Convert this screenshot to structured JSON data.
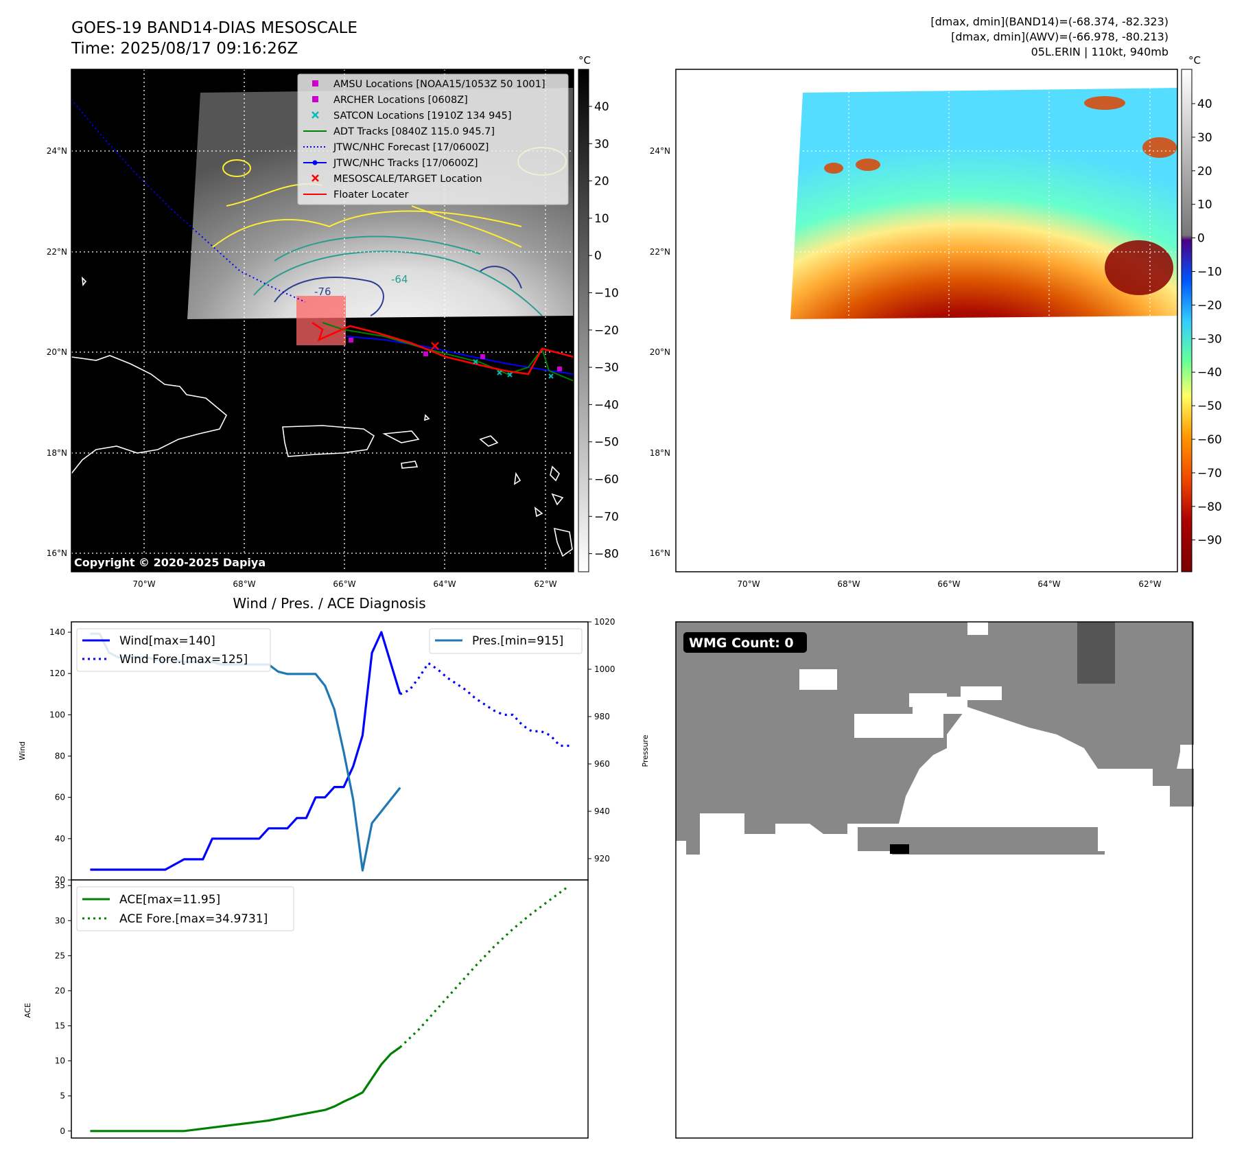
{
  "header": {
    "title": "GOES-19 BAND14-DIAS MESOSCALE",
    "time": "Time: 2025/08/17 09:16:26Z",
    "band14_range": "[dmax, dmin](BAND14)=(-68.374, -82.323)",
    "awv_range": "[dmax, dmin](AWV)=(-66.978, -80.213)",
    "storm": "05L.ERIN | 110kt, 940mb"
  },
  "maps": {
    "copyright": "Copyright © 2020-2025 Dapiya",
    "lat_ticks": [
      "24°N",
      "22°N",
      "20°N",
      "18°N",
      "16°N"
    ],
    "lon_ticks": [
      "70°W",
      "68°W",
      "66°W",
      "64°W",
      "62°W"
    ],
    "contour_labels": [
      "-76",
      "-64"
    ],
    "colorbar_unit": "°C",
    "gray_colorbar_ticks": [
      "40",
      "30",
      "20",
      "10",
      "0",
      "−10",
      "−20",
      "−30",
      "−40",
      "−50",
      "−60",
      "−70",
      "−80"
    ],
    "color_colorbar_ticks": [
      "40",
      "30",
      "20",
      "10",
      "0",
      "−10",
      "−20",
      "−30",
      "−40",
      "−50",
      "−60",
      "−70",
      "−80",
      "−90"
    ],
    "legend": [
      {
        "label": "AMSU Locations [NOAA15/1053Z 50 1001]",
        "color": "#cc00cc",
        "marker": "square"
      },
      {
        "label": "ARCHER Locations [0608Z]",
        "color": "#cc00cc",
        "marker": "square"
      },
      {
        "label": "SATCON Locations [1910Z 134 945]",
        "color": "#00bbbb",
        "marker": "x"
      },
      {
        "label": "ADT Tracks [0840Z 115.0 945.7]",
        "color": "#008000",
        "marker": "line"
      },
      {
        "label": "JTWC/NHC Forecast [17/0600Z]",
        "color": "#0000ff",
        "marker": "dotted"
      },
      {
        "label": "JTWC/NHC Tracks [17/0600Z]",
        "color": "#0000ff",
        "marker": "line-dot"
      },
      {
        "label": "MESOSCALE/TARGET Location",
        "color": "#ff0000",
        "marker": "x"
      },
      {
        "label": "Floater Locater",
        "color": "#ff0000",
        "marker": "line"
      }
    ],
    "wmg_label": "WMG Count: 0"
  },
  "chart_data": [
    {
      "type": "line",
      "title": "Wind / Pres. / ACE Diagnosis",
      "ylabel": "Wind",
      "y2label": "Pressure",
      "ylim": [
        20,
        145
      ],
      "y2lim": [
        911,
        1020
      ],
      "yticks": [
        "140",
        "120",
        "100",
        "80",
        "60",
        "40",
        "20"
      ],
      "y2ticks": [
        "1020",
        "1000",
        "980",
        "960",
        "940",
        "920"
      ],
      "x": [
        0,
        1,
        2,
        3,
        4,
        5,
        6,
        7,
        8,
        9,
        10,
        11,
        12,
        13,
        14,
        15,
        16,
        17,
        18,
        19,
        20,
        21,
        22,
        23,
        24,
        25,
        26,
        27,
        28,
        29,
        30,
        31,
        32,
        33,
        34,
        35,
        36,
        37,
        38,
        39,
        40,
        41,
        42,
        43,
        44,
        45,
        46,
        47,
        48,
        49,
        50,
        51
      ],
      "series": [
        {
          "name": "Wind[max=140]",
          "color": "#0000ff",
          "style": "solid",
          "x": [
            0,
            4,
            6,
            8,
            10,
            11,
            12,
            13,
            14,
            15,
            16,
            17,
            18,
            19,
            20,
            21,
            22,
            23,
            24,
            25,
            26,
            27,
            28,
            29,
            30,
            31,
            32,
            33
          ],
          "values": [
            25,
            25,
            25,
            25,
            30,
            30,
            30,
            40,
            40,
            40,
            40,
            40,
            40,
            45,
            45,
            45,
            50,
            50,
            60,
            60,
            65,
            65,
            75,
            90,
            130,
            140,
            125,
            110
          ]
        },
        {
          "name": "Wind Fore.[max=125]",
          "color": "#0000ff",
          "style": "dotted",
          "x": [
            33,
            34,
            35,
            36,
            37,
            38,
            39,
            40,
            41,
            42,
            43,
            44,
            45,
            46,
            47,
            48,
            49,
            50,
            51
          ],
          "values": [
            110,
            112,
            118,
            125,
            122,
            118,
            115,
            112,
            108,
            105,
            102,
            100,
            100,
            95,
            92,
            92,
            90,
            85,
            85
          ]
        },
        {
          "name": "Pres.[min=915]",
          "color": "#1f77b4",
          "style": "solid",
          "axis": "y2",
          "x": [
            0,
            1,
            2,
            3,
            4,
            5,
            6,
            7,
            8,
            9,
            10,
            11,
            12,
            13,
            14,
            15,
            16,
            17,
            18,
            19,
            20,
            21,
            22,
            23,
            24,
            25,
            26,
            27,
            28,
            29,
            30,
            31,
            32,
            33
          ],
          "values": [
            1015,
            1015,
            1007,
            1005,
            1005,
            1005,
            1005,
            1004,
            1004,
            1004,
            1003,
            1003,
            1003,
            1003,
            1002,
            1002,
            1002,
            1002,
            1002,
            1002,
            999,
            998,
            998,
            998,
            998,
            993,
            983,
            965,
            945,
            915,
            935,
            940,
            945,
            950
          ]
        }
      ]
    },
    {
      "type": "line",
      "ylabel": "ACE",
      "ylim": [
        -1,
        35.8
      ],
      "yticks": [
        "35",
        "30",
        "25",
        "20",
        "15",
        "10",
        "5",
        "0"
      ],
      "series": [
        {
          "name": "ACE[max=11.95]",
          "color": "#008000",
          "style": "solid",
          "x": [
            0,
            5,
            10,
            13,
            16,
            19,
            21,
            23,
            25,
            26,
            27,
            28,
            29,
            30,
            31,
            32,
            33
          ],
          "values": [
            0,
            0,
            0,
            0.5,
            1.0,
            1.5,
            2.0,
            2.5,
            3.0,
            3.5,
            4.2,
            4.8,
            5.5,
            7.5,
            9.5,
            11.0,
            11.95
          ]
        },
        {
          "name": "ACE Fore.[max=34.9731]",
          "color": "#008000",
          "style": "dotted",
          "x": [
            33,
            35,
            37,
            39,
            41,
            43,
            45,
            47,
            49,
            51
          ],
          "values": [
            11.95,
            14.5,
            17.5,
            20.5,
            23.5,
            26.3,
            28.8,
            31.0,
            33.0,
            34.97
          ]
        }
      ]
    }
  ]
}
